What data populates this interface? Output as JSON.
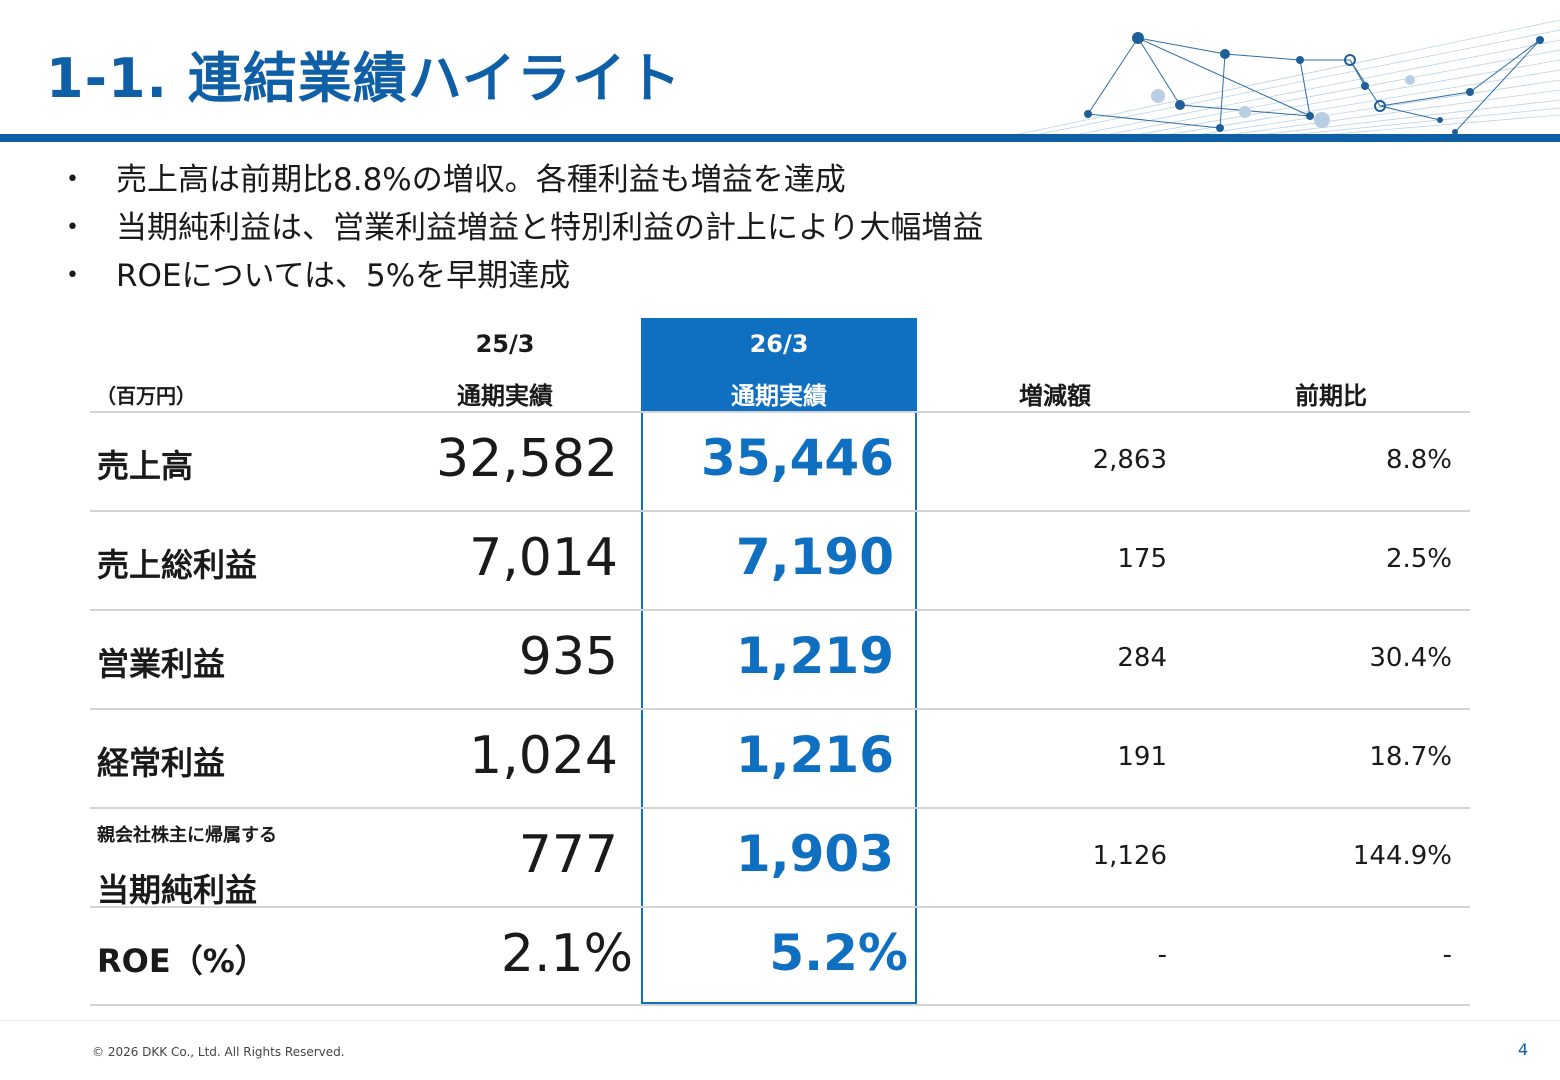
{
  "title": "1-1. 連結業績ハイライト",
  "bullets": [
    "売上高は前期比8.8%の増収。各種利益も増益を達成",
    "当期純利益は、営業利益増益と特別利益の計上により大幅増益",
    "ROEについては、5%を早期達成"
  ],
  "bullet_glyph": "•",
  "table": {
    "unit": "（百万円）",
    "col_prev_year": "25/3",
    "col_prev_label": "通期実績",
    "col_curr_year": "26/3",
    "col_curr_label": "通期実績",
    "col_diff": "増減額",
    "col_ratio": "前期比",
    "rows": [
      {
        "label": "売上高",
        "note": "",
        "prev": "32,582",
        "curr": "35,446",
        "diff": "2,863",
        "ratio": "8.8%"
      },
      {
        "label": "売上総利益",
        "note": "",
        "prev": "7,014",
        "curr": "7,190",
        "diff": "175",
        "ratio": "2.5%"
      },
      {
        "label": "営業利益",
        "note": "",
        "prev": "935",
        "curr": "1,219",
        "diff": "284",
        "ratio": "30.4%"
      },
      {
        "label": "経常利益",
        "note": "",
        "prev": "1,024",
        "curr": "1,216",
        "diff": "191",
        "ratio": "18.7%"
      },
      {
        "label": "当期純利益",
        "note": "親会社株主に帰属する",
        "prev": "777",
        "curr": "1,903",
        "diff": "1,126",
        "ratio": "144.9%"
      },
      {
        "label": "ROE（%）",
        "note": "",
        "prev": "2.1%",
        "curr": "5.2%",
        "diff": "-",
        "ratio": "-"
      }
    ]
  },
  "footer": {
    "copyright": "© 2026 DKK Co., Ltd. All Rights Reserved.",
    "page_number": "4"
  },
  "colors": {
    "accent": "#0f5fa6",
    "highlight": "#0f6fc0"
  }
}
